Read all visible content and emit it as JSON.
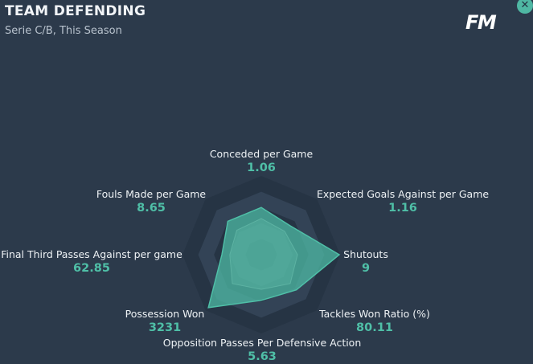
{
  "header": {
    "title": "TEAM DEFENDING",
    "subtitle": "Serie C/B, This Season",
    "logo_text": "FM",
    "close_symbol": "✕",
    "close_icon": "close-icon"
  },
  "colors": {
    "background": "#2c3a4b",
    "accent": "#4fbfa7",
    "ring_dark": "#263444",
    "ring_light": "#334356"
  },
  "metrics": [
    {
      "label": "Conceded per Game",
      "value": "1.06",
      "level": 0.6
    },
    {
      "label": "Expected Goals Against per Game",
      "value": "1.16",
      "level": 0.52
    },
    {
      "label": "Shutouts",
      "value": "9",
      "level": 0.99
    },
    {
      "label": "Tackles Won Ratio (%)",
      "value": "80.11",
      "level": 0.63
    },
    {
      "label": "Opposition Passes Per Defensive Action",
      "value": "5.63",
      "level": 0.58
    },
    {
      "label": "Possession Won",
      "value": "3231",
      "level": 0.95
    },
    {
      "label": "Final Third Passes Against per game",
      "value": "62.85",
      "level": 0.5
    },
    {
      "label": "Fouls Made per Game",
      "value": "8.65",
      "level": 0.6
    }
  ],
  "secondary_levels": [
    0.46,
    0.42,
    0.46,
    0.52,
    0.44,
    0.52,
    0.4,
    0.44
  ]
}
